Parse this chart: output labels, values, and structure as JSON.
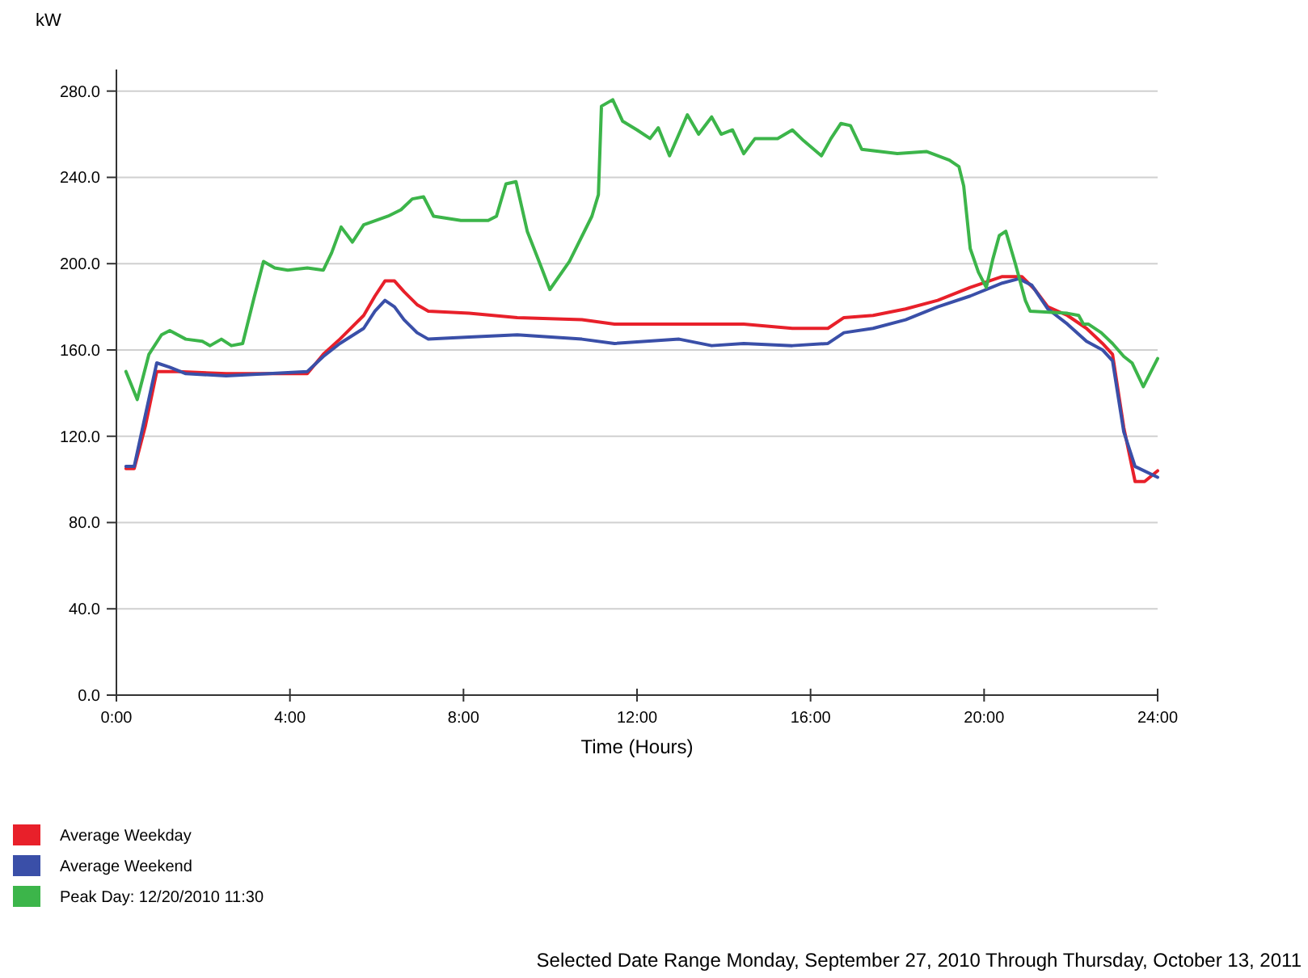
{
  "chart_data": {
    "type": "line",
    "ylabel": "kW",
    "xlabel": "Time (Hours)",
    "xlim": [
      0,
      24
    ],
    "xticks": [
      {
        "value": 0,
        "label": "0:00"
      },
      {
        "value": 4,
        "label": "4:00"
      },
      {
        "value": 8,
        "label": "8:00"
      },
      {
        "value": 12,
        "label": "12:00"
      },
      {
        "value": 16,
        "label": "16:00"
      },
      {
        "value": 20,
        "label": "20:00"
      },
      {
        "value": 24,
        "label": "24:00"
      }
    ],
    "ylim": [
      0,
      290
    ],
    "yticks": [
      {
        "value": 0,
        "label": "0.0"
      },
      {
        "value": 40,
        "label": "40.0"
      },
      {
        "value": 80,
        "label": "80.0"
      },
      {
        "value": 120,
        "label": "120.0"
      },
      {
        "value": 160,
        "label": "160.0"
      },
      {
        "value": 200,
        "label": "200.0"
      },
      {
        "value": 240,
        "label": "240.0"
      },
      {
        "value": 280,
        "label": "280.0"
      }
    ],
    "grid": "y",
    "legend": "bottom left",
    "marker": "none",
    "line_style": "solid",
    "annotations": [
      "Selected Date Range Monday, September 27, 2010 Through Thursday, October 13, 2011"
    ],
    "series": [
      {
        "name": "Average Weekday",
        "color": "#e8202a",
        "x": [
          0.22,
          0.41,
          0.67,
          0.93,
          1.42,
          2.53,
          4.4,
          4.77,
          5.15,
          5.7,
          5.96,
          6.19,
          6.41,
          6.63,
          6.93,
          7.19,
          8.13,
          9.24,
          10.73,
          11.48,
          12.97,
          14.46,
          15.58,
          16.4,
          16.77,
          17.44,
          18.19,
          18.93,
          19.68,
          20.42,
          20.87,
          21.17,
          21.47,
          21.92,
          22.36,
          22.73,
          22.96,
          23.22,
          23.48,
          23.7,
          24
        ],
        "values": [
          105,
          105,
          125,
          150,
          150,
          149,
          149,
          158,
          165,
          176,
          185,
          192,
          192,
          187,
          181,
          178,
          177,
          175,
          174,
          172,
          172,
          172,
          170,
          170,
          175,
          176,
          179,
          183,
          189,
          194,
          194,
          188,
          180,
          176,
          170,
          163,
          158,
          124,
          99,
          99,
          104
        ]
      },
      {
        "name": "Average Weekend",
        "color": "#3a4fa8",
        "x": [
          0.22,
          0.41,
          0.67,
          0.93,
          1.23,
          1.6,
          2.53,
          4.4,
          4.77,
          5.15,
          5.7,
          5.96,
          6.19,
          6.41,
          6.63,
          6.93,
          7.19,
          8.13,
          9.24,
          10.73,
          11.48,
          12.97,
          13.72,
          14.46,
          15.58,
          16.4,
          16.77,
          17.44,
          18.19,
          18.93,
          19.68,
          20.42,
          20.8,
          21.1,
          21.47,
          21.92,
          22.36,
          22.73,
          22.96,
          23.22,
          23.48,
          24
        ],
        "values": [
          106,
          106,
          130,
          154,
          152,
          149,
          148,
          150,
          157,
          163,
          170,
          178,
          183,
          180,
          174,
          168,
          165,
          166,
          167,
          165,
          163,
          165,
          162,
          163,
          162,
          163,
          168,
          170,
          174,
          180,
          185,
          191,
          193,
          190,
          179,
          172,
          164,
          160,
          155,
          122,
          106,
          101
        ]
      },
      {
        "name": "Peak Day: 12/20/2010 11:30",
        "color": "#3cb54a",
        "x": [
          0.22,
          0.48,
          0.75,
          1.04,
          1.23,
          1.6,
          1.98,
          2.16,
          2.42,
          2.65,
          2.91,
          3.17,
          3.39,
          3.65,
          3.95,
          4.4,
          4.77,
          4.96,
          5.18,
          5.44,
          5.7,
          6.26,
          6.56,
          6.82,
          7.08,
          7.31,
          7.94,
          8.57,
          8.76,
          8.98,
          9.21,
          9.47,
          9.8,
          9.99,
          10.44,
          10.96,
          11.11,
          11.18,
          11.44,
          11.67,
          12.0,
          12.3,
          12.49,
          12.75,
          13.16,
          13.42,
          13.72,
          13.94,
          14.2,
          14.46,
          14.72,
          15.24,
          15.58,
          15.84,
          16.25,
          16.47,
          16.7,
          16.92,
          17.18,
          18.0,
          18.67,
          19.2,
          19.42,
          19.53,
          19.68,
          19.87,
          20.05,
          20.2,
          20.35,
          20.5,
          20.72,
          20.95,
          21.06,
          21.92,
          22.18,
          22.29,
          22.4,
          22.7,
          22.96,
          23.22,
          23.41,
          23.67,
          24
        ],
        "values": [
          150,
          137,
          158,
          167,
          169,
          165,
          164,
          162,
          165,
          162,
          163,
          184,
          201,
          198,
          197,
          198,
          197,
          205,
          217,
          210,
          218,
          222,
          225,
          230,
          231,
          222,
          220,
          220,
          222,
          237,
          238,
          215,
          198,
          188,
          201,
          222,
          232,
          273,
          276,
          266,
          262,
          258,
          263,
          250,
          269,
          260,
          268,
          260,
          262,
          251,
          258,
          258,
          262,
          257,
          250,
          258,
          265,
          264,
          253,
          251,
          252,
          248,
          245,
          236,
          207,
          196,
          189,
          202,
          213,
          215,
          200,
          183,
          178,
          177,
          176,
          172,
          172,
          168,
          163,
          157,
          154,
          143,
          156
        ]
      }
    ]
  }
}
